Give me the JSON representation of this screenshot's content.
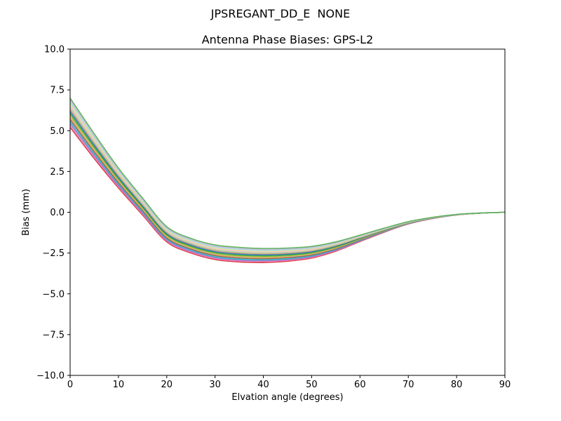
{
  "chart_data": {
    "type": "line",
    "title": "JPSREGANT_DD_E  NONE",
    "subtitle": "Antenna Phase Biases: GPS-L2",
    "xlabel": "Elvation angle (degrees)",
    "ylabel": "Bias (mm)",
    "xlim": [
      0,
      90
    ],
    "ylim": [
      -10,
      10
    ],
    "grid": false,
    "legend": false,
    "background": "#ffffff",
    "axes_color": "#000000",
    "xticks": [
      0,
      10,
      20,
      30,
      40,
      50,
      60,
      70,
      80,
      90
    ],
    "xticklabels": [
      "0",
      "10",
      "20",
      "30",
      "40",
      "50",
      "60",
      "70",
      "80",
      "90"
    ],
    "yticks": [
      10,
      7.5,
      5,
      2.5,
      0,
      -2.5,
      -5,
      -7.5,
      -10
    ],
    "yticklabels": [
      "10.0",
      "7.5",
      "5.0",
      "2.5",
      "0.0",
      "−2.5",
      "−5.0",
      "−7.5",
      "−10.0"
    ],
    "x": [
      0,
      5,
      10,
      15,
      20,
      25,
      30,
      35,
      40,
      45,
      50,
      55,
      60,
      65,
      70,
      75,
      80,
      85,
      90
    ],
    "base_values": [
      6.1,
      4.05,
      2.1,
      0.35,
      -1.35,
      -2.05,
      -2.45,
      -2.6,
      -2.65,
      -2.6,
      -2.45,
      -2.1,
      -1.6,
      -1.1,
      -0.65,
      -0.35,
      -0.15,
      -0.05,
      0.0
    ],
    "spread_shape": [
      1.0,
      0.85,
      0.68,
      0.58,
      0.52,
      0.5,
      0.5,
      0.5,
      0.48,
      0.45,
      0.4,
      0.32,
      0.22,
      0.14,
      0.08,
      0.04,
      0.02,
      0.01,
      0.0
    ],
    "series": [
      {
        "color": "#d62728",
        "amplitude": -0.9
      },
      {
        "color": "#e377c2",
        "amplitude": -0.78
      },
      {
        "color": "#9467bd",
        "amplitude": -0.66
      },
      {
        "color": "#17becf",
        "amplitude": -0.54
      },
      {
        "color": "#8c564b",
        "amplitude": -0.42
      },
      {
        "color": "#ff7f0e",
        "amplitude": -0.3
      },
      {
        "color": "#aec7e8",
        "amplitude": -0.24
      },
      {
        "color": "#bcbd22",
        "amplitude": -0.18
      },
      {
        "color": "#2ca02c",
        "amplitude": -0.06
      },
      {
        "color": "#1f77b4",
        "amplitude": 0.06
      },
      {
        "color": "#7f7f7f",
        "amplitude": 0.18
      },
      {
        "color": "#ff9896",
        "amplitude": 0.24
      },
      {
        "color": "#98df8a",
        "amplitude": 0.3
      },
      {
        "color": "#f7b6d2",
        "amplitude": 0.42
      },
      {
        "color": "#dbdb8d",
        "amplitude": 0.54
      },
      {
        "color": "#9edae5",
        "amplitude": 0.66
      },
      {
        "color": "#c5b0d5",
        "amplitude": 0.78
      },
      {
        "color": "#4daf4a",
        "amplitude": 0.9
      }
    ]
  }
}
